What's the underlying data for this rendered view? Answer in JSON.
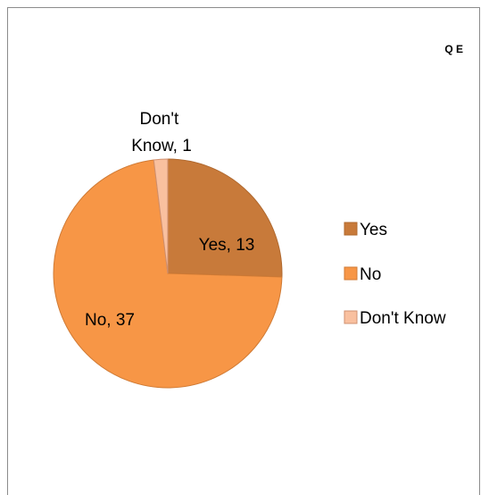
{
  "chart_data": {
    "type": "pie",
    "title": "Q E",
    "categories": [
      "Yes",
      "No",
      "Don't Know"
    ],
    "values": [
      13,
      37,
      1
    ],
    "colors": [
      "#c87a3a",
      "#f79646",
      "#f9c09f"
    ],
    "slice_labels": [
      "Yes, 13",
      "No, 37",
      "Don't Know, 1"
    ],
    "legend": {
      "placement": "right",
      "entries": [
        "Yes",
        "No",
        "Don't Know"
      ]
    }
  }
}
